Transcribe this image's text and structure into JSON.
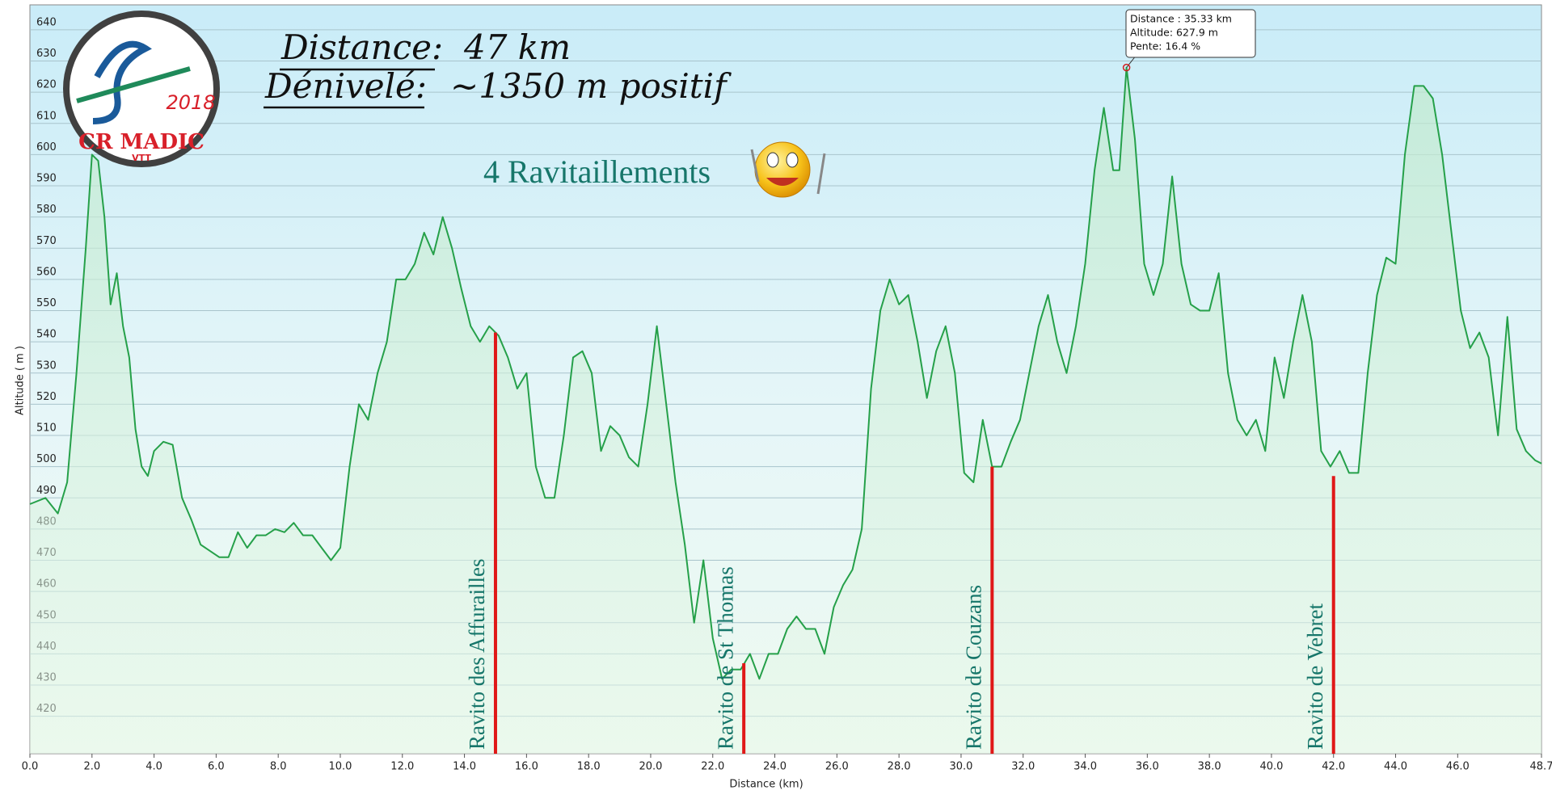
{
  "chart_data": {
    "type": "line",
    "xlabel": "Distance   (km)",
    "ylabel": "Altitude ( m )",
    "headline": {
      "distance_label": "Distance:",
      "distance_value": "47 km",
      "elevation_label": "Dénivelé:",
      "elevation_value": "~1350 m positif",
      "supply": "4 Ravitaillements"
    },
    "logo": {
      "club": "CR MADIC",
      "sub": "VTT",
      "year": "2018"
    },
    "tooltip": {
      "distance": 35.33,
      "altitude": 627.9,
      "lines": [
        "Distance  : 35.33 km",
        "Altitude: 627.9 m",
        "Pente: 16.4 %"
      ]
    },
    "xlim": [
      0,
      48.7
    ],
    "ylim": [
      408,
      648
    ],
    "xticks": [
      {
        "value": 0,
        "label": "0.0"
      },
      {
        "value": 2,
        "label": "2.0"
      },
      {
        "value": 4,
        "label": "4.0"
      },
      {
        "value": 6,
        "label": "6.0"
      },
      {
        "value": 8,
        "label": "8.0"
      },
      {
        "value": 10,
        "label": "10.0"
      },
      {
        "value": 12,
        "label": "12.0"
      },
      {
        "value": 14,
        "label": "14.0"
      },
      {
        "value": 16,
        "label": "16.0"
      },
      {
        "value": 18,
        "label": "18.0"
      },
      {
        "value": 20,
        "label": "20.0"
      },
      {
        "value": 22,
        "label": "22.0"
      },
      {
        "value": 24,
        "label": "24.0"
      },
      {
        "value": 26,
        "label": "26.0"
      },
      {
        "value": 28,
        "label": "28.0"
      },
      {
        "value": 30,
        "label": "30.0"
      },
      {
        "value": 32,
        "label": "32.0"
      },
      {
        "value": 34,
        "label": "34.0"
      },
      {
        "value": 36,
        "label": "36.0"
      },
      {
        "value": 38,
        "label": "38.0"
      },
      {
        "value": 40,
        "label": "40.0"
      },
      {
        "value": 42,
        "label": "42.0"
      },
      {
        "value": 44,
        "label": "44.0"
      },
      {
        "value": 46,
        "label": "46.0"
      },
      {
        "value": 48.7,
        "label": "48.7"
      }
    ],
    "yticks": [
      420,
      430,
      440,
      450,
      460,
      470,
      480,
      490,
      500,
      510,
      520,
      530,
      540,
      550,
      560,
      570,
      580,
      590,
      600,
      610,
      620,
      630,
      640
    ],
    "grid": true,
    "x": [
      0,
      0.5,
      0.9,
      1.2,
      1.5,
      1.8,
      2.0,
      2.2,
      2.4,
      2.6,
      2.8,
      3.0,
      3.2,
      3.4,
      3.6,
      3.8,
      4.0,
      4.3,
      4.6,
      4.9,
      5.2,
      5.5,
      5.8,
      6.1,
      6.4,
      6.7,
      7.0,
      7.3,
      7.6,
      7.9,
      8.2,
      8.5,
      8.8,
      9.1,
      9.4,
      9.7,
      10.0,
      10.3,
      10.6,
      10.9,
      11.2,
      11.5,
      11.8,
      12.1,
      12.4,
      12.7,
      13.0,
      13.3,
      13.6,
      13.9,
      14.2,
      14.5,
      14.8,
      15.1,
      15.4,
      15.7,
      16.0,
      16.3,
      16.6,
      16.9,
      17.2,
      17.5,
      17.8,
      18.1,
      18.4,
      18.7,
      19.0,
      19.3,
      19.6,
      19.9,
      20.2,
      20.5,
      20.8,
      21.1,
      21.4,
      21.7,
      22.0,
      22.3,
      22.6,
      22.9,
      23.2,
      23.5,
      23.8,
      24.1,
      24.4,
      24.7,
      25.0,
      25.3,
      25.6,
      25.9,
      26.2,
      26.5,
      26.8,
      27.1,
      27.4,
      27.7,
      28.0,
      28.3,
      28.6,
      28.9,
      29.2,
      29.5,
      29.8,
      30.1,
      30.4,
      30.7,
      31.0,
      31.3,
      31.6,
      31.9,
      32.2,
      32.5,
      32.8,
      33.1,
      33.4,
      33.7,
      34.0,
      34.3,
      34.6,
      34.9,
      35.1,
      35.33,
      35.6,
      35.9,
      36.2,
      36.5,
      36.8,
      37.1,
      37.4,
      37.7,
      38.0,
      38.3,
      38.6,
      38.9,
      39.2,
      39.5,
      39.8,
      40.1,
      40.4,
      40.7,
      41.0,
      41.3,
      41.6,
      41.9,
      42.2,
      42.5,
      42.8,
      43.1,
      43.4,
      43.7,
      44.0,
      44.3,
      44.6,
      44.9,
      45.2,
      45.5,
      45.8,
      46.1,
      46.4,
      46.7,
      47.0,
      47.3,
      47.6,
      47.9,
      48.2,
      48.5,
      48.7
    ],
    "series": [
      {
        "name": "Altitude",
        "color": "#25a049",
        "values": [
          488,
          490,
          485,
          495,
          530,
          570,
          600,
          598,
          580,
          552,
          562,
          545,
          535,
          512,
          500,
          497,
          505,
          508,
          507,
          490,
          483,
          475,
          473,
          471,
          471,
          479,
          474,
          478,
          478,
          480,
          479,
          482,
          478,
          478,
          474,
          470,
          474,
          500,
          520,
          515,
          530,
          540,
          560,
          560,
          565,
          575,
          568,
          580,
          570,
          557,
          545,
          540,
          545,
          542,
          535,
          525,
          530,
          500,
          490,
          490,
          510,
          535,
          537,
          530,
          505,
          513,
          510,
          503,
          500,
          520,
          545,
          520,
          495,
          475,
          450,
          470,
          445,
          432,
          435,
          435,
          440,
          432,
          440,
          440,
          448,
          452,
          448,
          448,
          440,
          455,
          462,
          467,
          480,
          525,
          550,
          560,
          552,
          555,
          540,
          522,
          537,
          545,
          530,
          498,
          495,
          515,
          500,
          500,
          508,
          515,
          530,
          545,
          555,
          540,
          530,
          545,
          565,
          595,
          615,
          595,
          595,
          627.9,
          605,
          565,
          555,
          565,
          593,
          565,
          552,
          550,
          550,
          562,
          530,
          515,
          510,
          515,
          505,
          535,
          522,
          540,
          555,
          540,
          505,
          500,
          505,
          498,
          498,
          530,
          555,
          567,
          565,
          600,
          622,
          622,
          618,
          600,
          575,
          550,
          538,
          543,
          535,
          510,
          548,
          512,
          505,
          502,
          501
        ]
      }
    ],
    "ravitos": [
      {
        "label": "Ravito  des Affurailles",
        "distance": 15.0,
        "altitude": 543
      },
      {
        "label": "Ravito  de St Thomas",
        "distance": 23.0,
        "altitude": 437
      },
      {
        "label": "Ravito  de Couzans",
        "distance": 31.0,
        "altitude": 500
      },
      {
        "label": "Ravito  de Vebret",
        "distance": 42.0,
        "altitude": 497
      }
    ],
    "ravito_color": "#e01818"
  }
}
